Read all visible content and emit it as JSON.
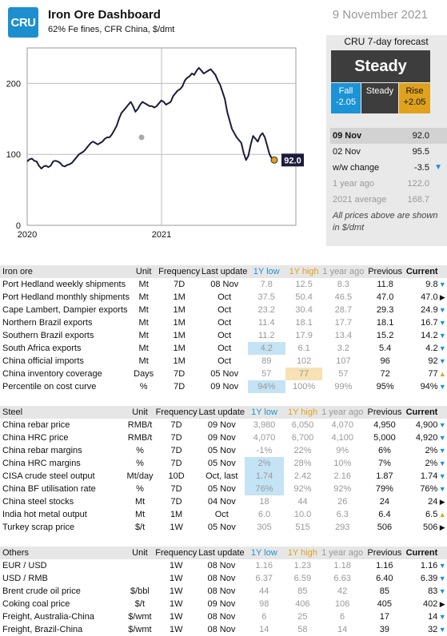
{
  "header": {
    "logo": "CRU",
    "title": "Iron Ore Dashboard",
    "subtitle": "62% Fe fines, CFR China, $/dmt",
    "date": "9 November 2021"
  },
  "chart_data": {
    "type": "line",
    "title": "",
    "xlabel": "",
    "ylabel": "",
    "x_ticks": [
      "2020",
      "2021"
    ],
    "y_ticks": [
      0,
      100,
      200
    ],
    "ylim": [
      0,
      250
    ],
    "end_label": "92.0",
    "series": [
      {
        "values": [
          90,
          93,
          94,
          91,
          90,
          84,
          80,
          83,
          84,
          82,
          84,
          90,
          91,
          90,
          88,
          84,
          83,
          85,
          86,
          88,
          92,
          96,
          100,
          102,
          104,
          108,
          112,
          116,
          118,
          116,
          114,
          116,
          118,
          122,
          124,
          124,
          128,
          134,
          140,
          150,
          158,
          162,
          166,
          170,
          174,
          168,
          160,
          164,
          170,
          174,
          172,
          170,
          168,
          168,
          166,
          168,
          172,
          176,
          174,
          170,
          172,
          174,
          182,
          186,
          190,
          192,
          196,
          204,
          208,
          210,
          214,
          212,
          218,
          222,
          218,
          214,
          216,
          218,
          220,
          216,
          212,
          204,
          198,
          188,
          178,
          160,
          148,
          136,
          130,
          124,
          120,
          116,
          102,
          92,
          98,
          114,
          126,
          122,
          118,
          126,
          130,
          124,
          112,
          100,
          94,
          92
        ]
      }
    ]
  },
  "forecast": {
    "title": "CRU 7-day forecast",
    "verdict": "Steady",
    "fall_label": "Fall",
    "fall_value": "-2.05",
    "steady_label": "Steady",
    "rise_label": "Rise",
    "rise_value": "+2.05"
  },
  "prices": {
    "rows": [
      {
        "label": "09 Nov",
        "value": "92.0"
      },
      {
        "label": "02 Nov",
        "value": "95.5"
      },
      {
        "label": "w/w change",
        "value": "-3.5"
      },
      {
        "label": "1 year ago",
        "value": "122.0"
      },
      {
        "label": "2021 average",
        "value": "168.7"
      }
    ],
    "note": "All prices above are shown in $/dmt"
  },
  "colors": {
    "down": "#1b93d6",
    "up": "#e0a21c",
    "line": "#1c1c3a",
    "dark": "#3d3d3d"
  },
  "columns": {
    "unit": "Unit",
    "freq": "Frequency",
    "lu": "Last update",
    "lo": "1Y low",
    "hi": "1Y high",
    "ya": "1 year ago",
    "pr": "Previous",
    "cur": "Current"
  },
  "sections": [
    {
      "name": "Iron ore",
      "rows": [
        [
          "Port Hedland weekly shipments",
          "Mt",
          "7D",
          "08 Nov",
          "7.8",
          "12.5",
          "8.3",
          "11.8",
          "9.8",
          "down"
        ],
        [
          "Port Hedland monthly shipments",
          "Mt",
          "1M",
          "Oct",
          "37.5",
          "50.4",
          "46.5",
          "47.0",
          "47.0",
          "right"
        ],
        [
          "Cape Lambert, Dampier exports",
          "Mt",
          "1M",
          "Oct",
          "23.2",
          "30.4",
          "28.7",
          "29.3",
          "24.9",
          "down"
        ],
        [
          "Northern Brazil exports",
          "Mt",
          "1M",
          "Oct",
          "11.4",
          "18.1",
          "17.7",
          "18.1",
          "16.7",
          "down"
        ],
        [
          "Southern Brazil exports",
          "Mt",
          "1M",
          "Oct",
          "11.2",
          "17.9",
          "13.4",
          "15.2",
          "14.2",
          "down"
        ],
        [
          "South Africa exports",
          "Mt",
          "1M",
          "Oct",
          "4.2",
          "6.1",
          "3.2",
          "5.4",
          "4.2",
          "down"
        ],
        [
          "China official imports",
          "Mt",
          "1M",
          "Oct",
          "89",
          "102",
          "107",
          "96",
          "92",
          "down"
        ],
        [
          "China inventory coverage",
          "Days",
          "7D",
          "05 Nov",
          "57",
          "77",
          "57",
          "72",
          "77",
          "up"
        ],
        [
          "Percentile on cost curve",
          "%",
          "7D",
          "09 Nov",
          "94%",
          "100%",
          "99%",
          "95%",
          "94%",
          "down"
        ]
      ],
      "hl_lo": [
        5,
        8
      ],
      "hl_hi": [
        7
      ]
    },
    {
      "name": "Steel",
      "rows": [
        [
          "China rebar price",
          "RMB/t",
          "7D",
          "09 Nov",
          "3,980",
          "6,050",
          "4,070",
          "4,950",
          "4,900",
          "down"
        ],
        [
          "China HRC price",
          "RMB/t",
          "7D",
          "09 Nov",
          "4,070",
          "6,700",
          "4,100",
          "5,000",
          "4,920",
          "down"
        ],
        [
          "China rebar margins",
          "%",
          "7D",
          "05 Nov",
          "-1%",
          "22%",
          "9%",
          "6%",
          "2%",
          "down"
        ],
        [
          "China HRC margins",
          "%",
          "7D",
          "05 Nov",
          "2%",
          "28%",
          "10%",
          "7%",
          "2%",
          "down"
        ],
        [
          "CISA crude steel output",
          "Mt/day",
          "10D",
          "Oct, last",
          "1.74",
          "2.42",
          "2.16",
          "1.87",
          "1.74",
          "down"
        ],
        [
          "China BF utilisation rate",
          "%",
          "7D",
          "05 Nov",
          "76%",
          "92%",
          "92%",
          "79%",
          "76%",
          "down"
        ],
        [
          "China steel stocks",
          "Mt",
          "7D",
          "04 Nov",
          "18",
          "44",
          "26",
          "24",
          "24",
          "right"
        ],
        [
          "India hot metal output",
          "Mt",
          "1M",
          "Oct",
          "6.0",
          "10.0",
          "6.3",
          "6.4",
          "6.5",
          "up"
        ],
        [
          "Turkey scrap price",
          "$/t",
          "1W",
          "05 Nov",
          "305",
          "515",
          "293",
          "506",
          "506",
          "right"
        ]
      ],
      "hl_lo": [
        3,
        4,
        5
      ],
      "hl_hi": []
    },
    {
      "name": "Others",
      "rows": [
        [
          "EUR / USD",
          "",
          "1W",
          "08 Nov",
          "1.16",
          "1.23",
          "1.18",
          "1.16",
          "1.16",
          "down"
        ],
        [
          "USD / RMB",
          "",
          "1W",
          "08 Nov",
          "6.37",
          "6.59",
          "6.63",
          "6.40",
          "6.39",
          "down"
        ],
        [
          "Brent crude oil price",
          "$/bbl",
          "1W",
          "08 Nov",
          "44",
          "85",
          "42",
          "85",
          "83",
          "down"
        ],
        [
          "Coking coal price",
          "$/t",
          "1W",
          "09 Nov",
          "98",
          "406",
          "106",
          "405",
          "402",
          "right"
        ],
        [
          "Freight, Australia-China",
          "$/wmt",
          "1W",
          "08 Nov",
          "6",
          "25",
          "6",
          "17",
          "14",
          "down"
        ],
        [
          "Freight, Brazil-China",
          "$/wmt",
          "1W",
          "08 Nov",
          "14",
          "58",
          "14",
          "39",
          "32",
          "down"
        ]
      ],
      "hl_lo": [],
      "hl_hi": []
    }
  ]
}
